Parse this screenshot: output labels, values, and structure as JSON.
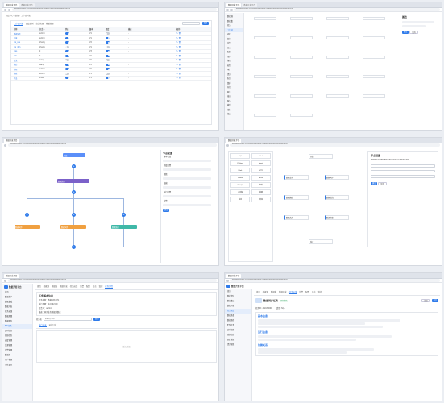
{
  "watermark": [
    "数据开发平台",
    "数据开发平台",
    "数据开发平台"
  ],
  "browser": {
    "tab_label": "数据开发平台",
    "url": "datawarehouse.cn/#/workflow/detail?id=bfb7d0b5&taskId=ab0c8000"
  },
  "p1": {
    "breadcrumb": "调度中心 / 数据 / 工作流列表",
    "tabs": [
      "工作流列表",
      "调度实例",
      "告警管理",
      "模板管理"
    ],
    "search_placeholder": "请输入",
    "new_button": "新建",
    "columns": [
      "名称",
      "负责人",
      "状态",
      "版本",
      "调度",
      "描述",
      "操作"
    ],
    "rows": [
      {
        "name": "数据同步",
        "owner": "admin",
        "ver": "V1",
        "desc": "-",
        "on": true
      },
      {
        "name": "日报",
        "owner": "admin",
        "ver": "V1",
        "desc": "-",
        "on": true
      },
      {
        "name": "dw_ods",
        "owner": "zhang",
        "ver": "V2",
        "desc": "-",
        "on": true
      },
      {
        "name": "dw_dim",
        "owner": "zhang",
        "ver": "V1",
        "desc": "-",
        "on": false
      },
      {
        "name": "dws",
        "owner": "li",
        "ver": "V3",
        "desc": "-",
        "on": true
      },
      {
        "name": "ads",
        "owner": "li",
        "ver": "V1",
        "desc": "-",
        "on": true
      },
      {
        "name": "清洗",
        "owner": "wang",
        "ver": "V1",
        "desc": "-",
        "on": false
      },
      {
        "name": "校验",
        "owner": "wang",
        "ver": "V2",
        "desc": "-",
        "on": true
      },
      {
        "name": "指标",
        "owner": "admin",
        "ver": "V1",
        "desc": "-",
        "on": true
      },
      {
        "name": "报表",
        "owner": "admin",
        "ver": "V1",
        "desc": "-",
        "on": false
      },
      {
        "name": "导出",
        "owner": "zhao",
        "ver": "V1",
        "desc": "-",
        "on": true
      }
    ]
  },
  "p2": {
    "tree_items": [
      "数据源",
      "数据集",
      "任务",
      "工作流",
      "调度",
      "监控",
      "告警",
      "日志",
      "配置",
      "用户",
      "角色",
      "权限",
      "审计",
      "资源",
      "队列",
      "集群",
      "存储",
      "网关",
      "接口",
      "服务",
      "模型",
      "指标",
      "报表"
    ],
    "panel_title": "属性",
    "panel_buttons": [
      "确定",
      "取消"
    ]
  },
  "p3": {
    "nodes": [
      {
        "label": "开始",
        "color": "#5b8ff9"
      },
      {
        "label": "数据处理",
        "color": "#7b61c9"
      },
      {
        "label": "数据同步",
        "color": "#f0a040"
      },
      {
        "label": "数据同步",
        "color": "#f0a040"
      },
      {
        "label": "数据质量",
        "color": "#3fb8a8"
      }
    ],
    "panel_title": "节点配置",
    "panel_items": [
      "基本信息",
      "调度配置",
      "参数",
      "依赖",
      "运行配置",
      "告警"
    ],
    "confirm": "确定"
  },
  "p4": {
    "palette_items": [
      "SQL",
      "Shell",
      "Python",
      "Spark",
      "Flink",
      "HTTP",
      "DataX",
      "Hive",
      "MySQL",
      "条件",
      "子流程",
      "依赖",
      "等待",
      "结束"
    ],
    "nodes": [
      "开始",
      "数据查询",
      "数据同步",
      "数据输出",
      "数据清洗",
      "数据合并",
      "数据检查",
      "结束"
    ],
    "panel_title": "节点配置",
    "panel_text": "请配置节点的输入输出参数以及运行时依赖关系说明",
    "buttons": [
      "确定",
      "取消"
    ]
  },
  "p5": {
    "app_title": "数据开发平台",
    "nav": [
      "首页",
      "数据资产",
      "数据集成",
      "数据开发",
      "任务运维",
      "数据质量",
      "数据服务",
      "ETL任务",
      "实时任务",
      "离线任务",
      "调度管理",
      "资源管理",
      "告警管理",
      "数据源",
      "用户管理",
      "系统设置"
    ],
    "tabs": [
      "首页",
      "数据源",
      "数据集",
      "数据开发",
      "任务运维",
      "告警",
      "配置",
      "日志",
      "监控",
      "任务详情"
    ],
    "section_title": "任务基本信息",
    "info_lines": [
      "任务名称：数据同步任务",
      "执行周期：每日 02:00",
      "负责人：admin",
      "描述：同步业务数据到数仓"
    ],
    "search_label": "任务名",
    "search_value": "数据同步任务",
    "query_button": "查询",
    "sub_tabs": [
      "执行记录",
      "运行日志"
    ],
    "empty_text": "暂无数据"
  },
  "p6": {
    "app_title": "数据开发平台",
    "tabs": [
      "首页",
      "数据源",
      "数据集",
      "数据开发",
      "任务运维",
      "告警",
      "配置",
      "日志",
      "监控"
    ],
    "task_name": "数据同步任务",
    "status": "运行成功",
    "buttons": [
      "编辑",
      "运行"
    ],
    "fields": [
      {
        "k": "任务ID",
        "v": "ab0c8000"
      },
      {
        "k": "类型",
        "v": "SQL"
      }
    ],
    "section1": "基本信息",
    "section2": "运行信息",
    "section3": "依赖关系"
  },
  "colors": {
    "primary": "#2f7bea",
    "orange": "#f0a040",
    "purple": "#7b61c9",
    "teal": "#3fb8a8"
  }
}
